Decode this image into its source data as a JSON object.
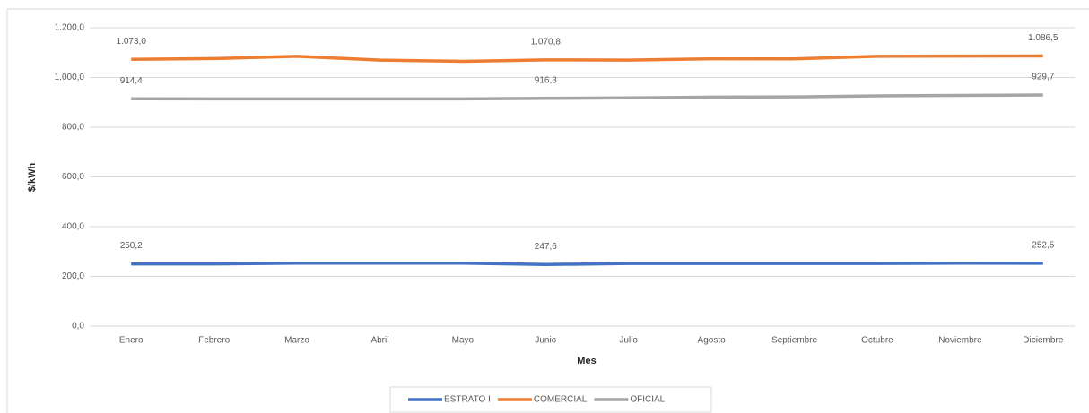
{
  "chart_data": {
    "type": "line",
    "x_label": "Mes",
    "y_label": "$/kWh",
    "categories": [
      "Enero",
      "Febrero",
      "Marzo",
      "Abril",
      "Mayo",
      "Junio",
      "Julio",
      "Agosto",
      "Septiembre",
      "Octubre",
      "Noviembre",
      "Diciembre"
    ],
    "series": [
      {
        "name": "ESTRATO I",
        "color": "#4472c4",
        "values": [
          250.2,
          250,
          253,
          253,
          253,
          247.6,
          252,
          252,
          252,
          252,
          253,
          252.5
        ],
        "value_labels": [
          "250,2",
          null,
          null,
          null,
          null,
          "247,6",
          null,
          null,
          null,
          null,
          null,
          "252,5"
        ]
      },
      {
        "name": "COMERCIAL",
        "color": "#ed7d31",
        "values": [
          1073.0,
          1076,
          1085,
          1070,
          1065,
          1070.8,
          1070,
          1075,
          1075,
          1085,
          1086,
          1086.5
        ],
        "value_labels": [
          "1.073,0",
          null,
          null,
          null,
          null,
          "1.070,8",
          null,
          null,
          null,
          null,
          null,
          "1.086,5"
        ]
      },
      {
        "name": "OFICIAL",
        "color": "#a5a5a5",
        "values": [
          914.4,
          914,
          914,
          914,
          914,
          916.3,
          918,
          921,
          922,
          926,
          928,
          929.7
        ],
        "value_labels": [
          "914,4",
          null,
          null,
          null,
          null,
          "916,3",
          null,
          null,
          null,
          null,
          null,
          "929,7"
        ]
      }
    ],
    "ylim": [
      0,
      1200
    ],
    "yticks": [
      {
        "value": 0,
        "label": "0,0"
      },
      {
        "value": 200,
        "label": "200,0"
      },
      {
        "value": 400,
        "label": "400,0"
      },
      {
        "value": 600,
        "label": "600,0"
      },
      {
        "value": 800,
        "label": "800,0"
      },
      {
        "value": 1000,
        "label": "1.000,0"
      },
      {
        "value": 1200,
        "label": "1.200,0"
      }
    ],
    "grid": true,
    "legend": "bottom"
  }
}
